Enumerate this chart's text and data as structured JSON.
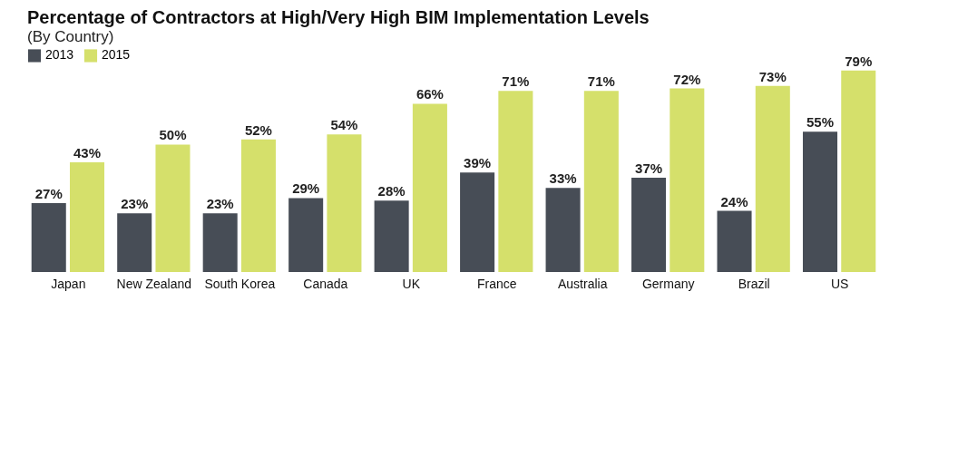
{
  "chart_data": {
    "type": "bar",
    "title": "Percentage of Contractors at High/Very High BIM Implementation Levels",
    "subtitle": "(By Country)",
    "categories": [
      "Japan",
      "New Zealand",
      "South Korea",
      "Canada",
      "UK",
      "France",
      "Australia",
      "Germany",
      "Brazil",
      "US"
    ],
    "series": [
      {
        "name": "2013",
        "color": "#474d56",
        "values": [
          27,
          23,
          23,
          29,
          28,
          39,
          33,
          37,
          24,
          55
        ],
        "value_labels": [
          "27%",
          "23%",
          "23%",
          "29%",
          "28%",
          "39%",
          "33%",
          "37%",
          "24%",
          "55%"
        ]
      },
      {
        "name": "2015",
        "color": "#d5e06b",
        "values": [
          43,
          50,
          52,
          54,
          66,
          71,
          71,
          72,
          73,
          79
        ],
        "value_labels": [
          "43%",
          "50%",
          "52%",
          "54%",
          "66%",
          "71%",
          "71%",
          "72%",
          "73%",
          "79%"
        ]
      }
    ],
    "legend": "top left",
    "tick_labels": "x"
  }
}
